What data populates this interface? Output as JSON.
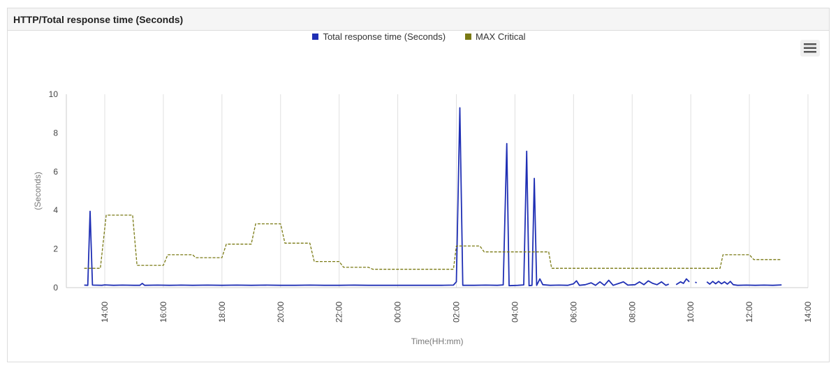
{
  "panel": {
    "title": "HTTP/Total response time (Seconds)"
  },
  "menu": {
    "icon": "hamburger-menu-icon"
  },
  "colors": {
    "response": "#1f2fb4",
    "critical": "#7a7a14",
    "grid": "#e0e0e0",
    "axis": "#cccccc",
    "menu_bg": "#f0f0f0"
  },
  "chart_data": {
    "type": "line",
    "title": "HTTP/Total response time (Seconds)",
    "xlabel": "Time(HH:mm)",
    "ylabel": "(Seconds)",
    "ylim": [
      0,
      10
    ],
    "yticks": [
      "0",
      "2",
      "4",
      "6",
      "8",
      "10"
    ],
    "xlim": [
      13.0,
      38.0
    ],
    "xticks": [
      {
        "x": 14,
        "label": "14:00"
      },
      {
        "x": 16,
        "label": "16:00"
      },
      {
        "x": 18,
        "label": "18:00"
      },
      {
        "x": 20,
        "label": "20:00"
      },
      {
        "x": 22,
        "label": "22:00"
      },
      {
        "x": 24,
        "label": "00:00"
      },
      {
        "x": 26,
        "label": "02:00"
      },
      {
        "x": 28,
        "label": "04:00"
      },
      {
        "x": 30,
        "label": "06:00"
      },
      {
        "x": 32,
        "label": "08:00"
      },
      {
        "x": 34,
        "label": "10:00"
      },
      {
        "x": 36,
        "label": "12:00"
      },
      {
        "x": 38,
        "label": "14:00"
      }
    ],
    "grid": true,
    "legend_position": "top-center",
    "series": [
      {
        "name": "Total response time (Seconds)",
        "color": "#1f2fb4",
        "style": "solid",
        "segments": [
          [
            [
              13.3,
              0.13
            ],
            [
              13.42,
              0.12
            ],
            [
              13.5,
              3.95
            ],
            [
              13.58,
              0.13
            ],
            [
              13.9,
              0.12
            ],
            [
              14.0,
              0.14
            ],
            [
              14.3,
              0.12
            ],
            [
              14.6,
              0.13
            ],
            [
              15.0,
              0.12
            ],
            [
              15.2,
              0.12
            ],
            [
              15.28,
              0.22
            ],
            [
              15.36,
              0.12
            ],
            [
              15.8,
              0.13
            ],
            [
              16.2,
              0.12
            ],
            [
              16.6,
              0.13
            ],
            [
              17.0,
              0.12
            ],
            [
              17.5,
              0.13
            ],
            [
              18.0,
              0.12
            ],
            [
              18.5,
              0.13
            ],
            [
              19.0,
              0.12
            ],
            [
              19.5,
              0.13
            ],
            [
              20.0,
              0.12
            ],
            [
              20.5,
              0.12
            ],
            [
              21.0,
              0.13
            ],
            [
              21.5,
              0.12
            ],
            [
              22.0,
              0.12
            ],
            [
              22.5,
              0.13
            ],
            [
              23.0,
              0.12
            ],
            [
              23.5,
              0.12
            ],
            [
              24.0,
              0.12
            ],
            [
              24.5,
              0.12
            ],
            [
              25.0,
              0.12
            ],
            [
              25.5,
              0.12
            ],
            [
              25.9,
              0.13
            ],
            [
              26.0,
              0.3
            ],
            [
              26.12,
              9.3
            ],
            [
              26.22,
              0.12
            ],
            [
              26.6,
              0.12
            ],
            [
              27.0,
              0.13
            ],
            [
              27.4,
              0.12
            ],
            [
              27.6,
              0.14
            ],
            [
              27.72,
              7.45
            ],
            [
              27.8,
              0.1
            ],
            [
              28.1,
              0.12
            ],
            [
              28.3,
              0.14
            ],
            [
              28.4,
              7.05
            ],
            [
              28.48,
              0.1
            ],
            [
              28.58,
              0.12
            ],
            [
              28.66,
              5.65
            ],
            [
              28.74,
              0.12
            ],
            [
              28.85,
              0.45
            ],
            [
              28.95,
              0.15
            ],
            [
              29.2,
              0.12
            ],
            [
              29.5,
              0.13
            ],
            [
              29.8,
              0.12
            ],
            [
              30.0,
              0.2
            ],
            [
              30.1,
              0.35
            ],
            [
              30.2,
              0.12
            ],
            [
              30.4,
              0.15
            ],
            [
              30.6,
              0.25
            ],
            [
              30.75,
              0.12
            ],
            [
              30.9,
              0.3
            ],
            [
              31.05,
              0.12
            ],
            [
              31.2,
              0.38
            ],
            [
              31.35,
              0.12
            ],
            [
              31.55,
              0.22
            ],
            [
              31.7,
              0.3
            ],
            [
              31.85,
              0.13
            ],
            [
              32.1,
              0.15
            ],
            [
              32.25,
              0.3
            ],
            [
              32.4,
              0.15
            ],
            [
              32.55,
              0.35
            ],
            [
              32.7,
              0.22
            ],
            [
              32.85,
              0.15
            ],
            [
              33.0,
              0.3
            ],
            [
              33.15,
              0.12
            ],
            [
              33.25,
              0.18
            ]
          ],
          [
            [
              33.5,
              0.15
            ],
            [
              33.65,
              0.3
            ],
            [
              33.75,
              0.22
            ],
            [
              33.85,
              0.45
            ],
            [
              33.95,
              0.3
            ]
          ],
          [
            [
              34.15,
              0.28
            ],
            [
              34.2,
              0.25
            ]
          ],
          [
            [
              34.55,
              0.3
            ],
            [
              34.65,
              0.18
            ],
            [
              34.75,
              0.32
            ],
            [
              34.85,
              0.2
            ],
            [
              34.95,
              0.32
            ],
            [
              35.05,
              0.2
            ],
            [
              35.15,
              0.3
            ],
            [
              35.25,
              0.18
            ],
            [
              35.35,
              0.32
            ],
            [
              35.45,
              0.15
            ],
            [
              35.6,
              0.12
            ],
            [
              35.9,
              0.13
            ],
            [
              36.2,
              0.12
            ],
            [
              36.5,
              0.13
            ],
            [
              36.8,
              0.12
            ],
            [
              37.1,
              0.14
            ]
          ]
        ]
      },
      {
        "name": "MAX Critical",
        "color": "#7a7a14",
        "style": "dashed",
        "segments": [
          [
            [
              13.3,
              1.0
            ],
            [
              13.85,
              1.0
            ],
            [
              14.05,
              3.75
            ],
            [
              14.95,
              3.75
            ],
            [
              15.1,
              1.15
            ],
            [
              16.0,
              1.15
            ],
            [
              16.15,
              1.7
            ],
            [
              17.0,
              1.7
            ],
            [
              17.1,
              1.55
            ],
            [
              18.0,
              1.55
            ],
            [
              18.15,
              2.25
            ],
            [
              19.0,
              2.25
            ],
            [
              19.15,
              3.3
            ],
            [
              20.0,
              3.3
            ],
            [
              20.15,
              2.3
            ],
            [
              21.0,
              2.3
            ],
            [
              21.15,
              1.35
            ],
            [
              22.0,
              1.35
            ],
            [
              22.15,
              1.05
            ],
            [
              23.0,
              1.05
            ],
            [
              23.15,
              0.95
            ],
            [
              25.9,
              0.95
            ],
            [
              26.0,
              2.15
            ],
            [
              26.8,
              2.15
            ],
            [
              26.95,
              1.85
            ],
            [
              28.2,
              1.85
            ],
            [
              28.3,
              1.85
            ],
            [
              29.15,
              1.85
            ],
            [
              29.25,
              1.0
            ],
            [
              35.0,
              1.0
            ],
            [
              35.1,
              1.7
            ],
            [
              36.0,
              1.7
            ],
            [
              36.15,
              1.45
            ],
            [
              37.1,
              1.45
            ]
          ]
        ]
      }
    ]
  }
}
